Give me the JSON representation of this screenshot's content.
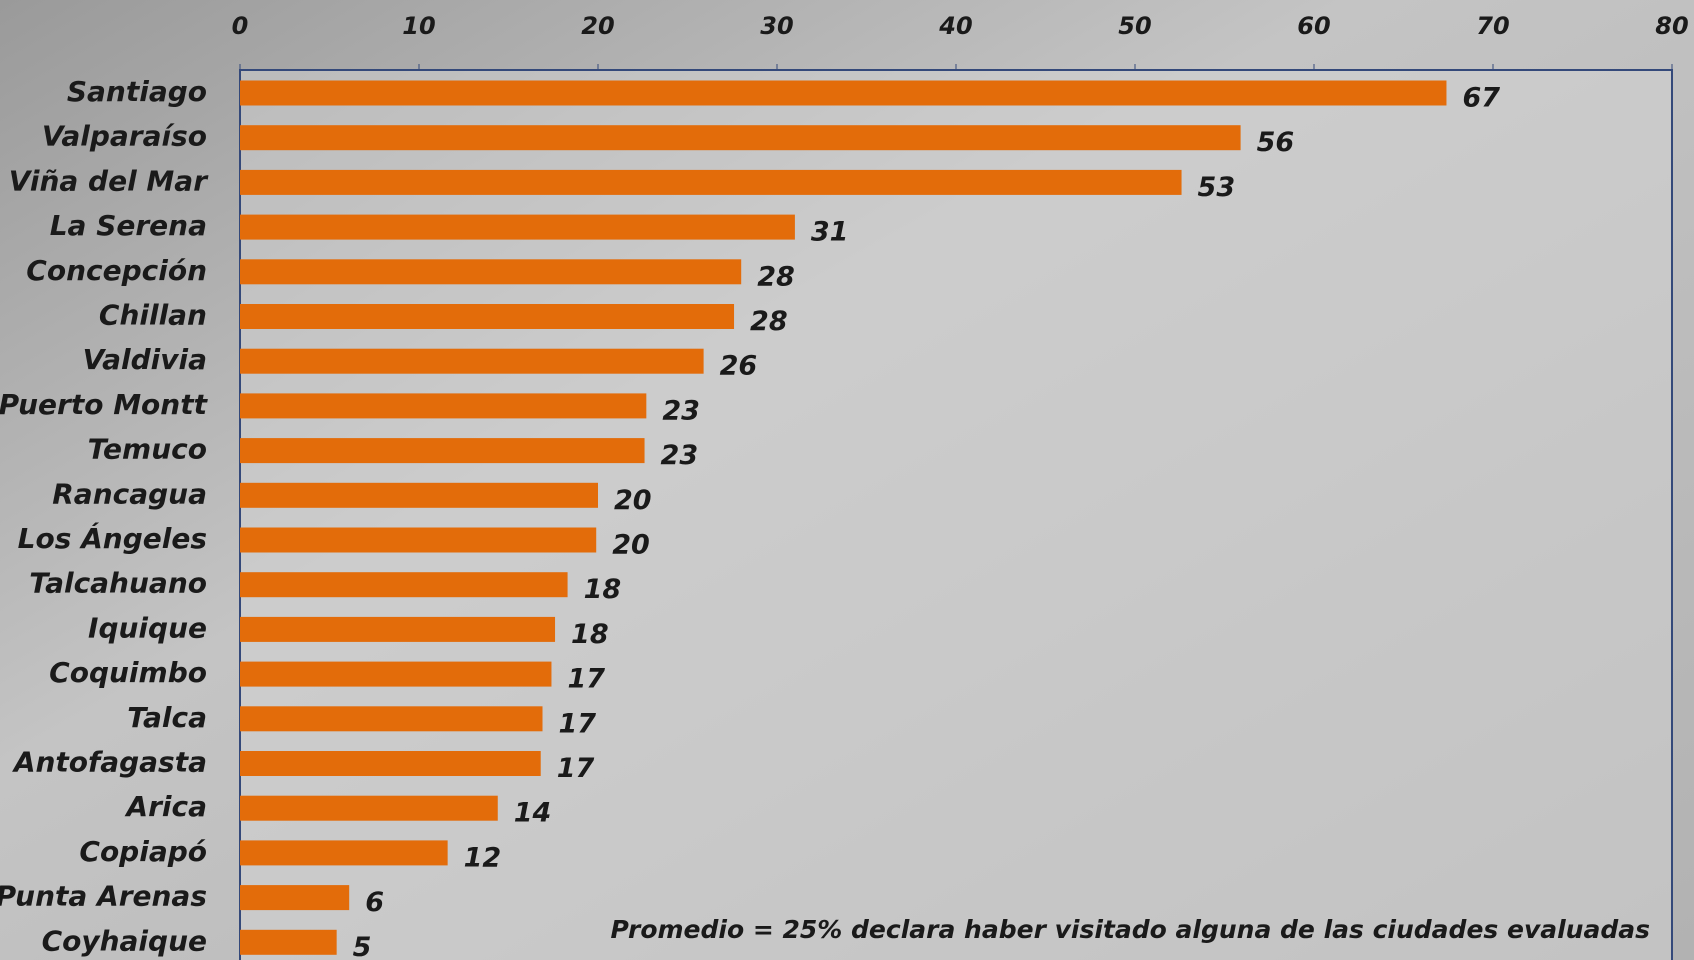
{
  "chart_data": {
    "type": "barh",
    "categories": [
      "Santiago",
      "Valparaíso",
      "Viña del Mar",
      "La Serena",
      "Concepción",
      "Chillan",
      "Valdivia",
      "Puerto Montt",
      "Temuco",
      "Rancagua",
      "Los Ángeles",
      "Talcahuano",
      "Iquique",
      "Coquimbo",
      "Talca",
      "Antofagasta",
      "Arica",
      "Copiapó",
      "Punta Arenas",
      "Coyhaique"
    ],
    "values": [
      67.4,
      55.9,
      52.6,
      31.0,
      28.0,
      27.6,
      25.9,
      22.7,
      22.6,
      20.0,
      19.9,
      18.3,
      17.6,
      17.4,
      16.9,
      16.8,
      14.4,
      11.6,
      6.1,
      5.4
    ],
    "value_labels": [
      "67",
      "56",
      "53",
      "31",
      "28",
      "28",
      "26",
      "23",
      "23",
      "20",
      "20",
      "18",
      "18",
      "17",
      "17",
      "17",
      "14",
      "12",
      "6",
      "5"
    ],
    "color": "#e36c0a",
    "xlim": [
      0,
      80
    ],
    "xticks": [
      0,
      10,
      20,
      30,
      40,
      50,
      60,
      70,
      80
    ],
    "annotation": "Promedio = 25% declara haber visitado alguna de las ciudades evaluadas"
  }
}
